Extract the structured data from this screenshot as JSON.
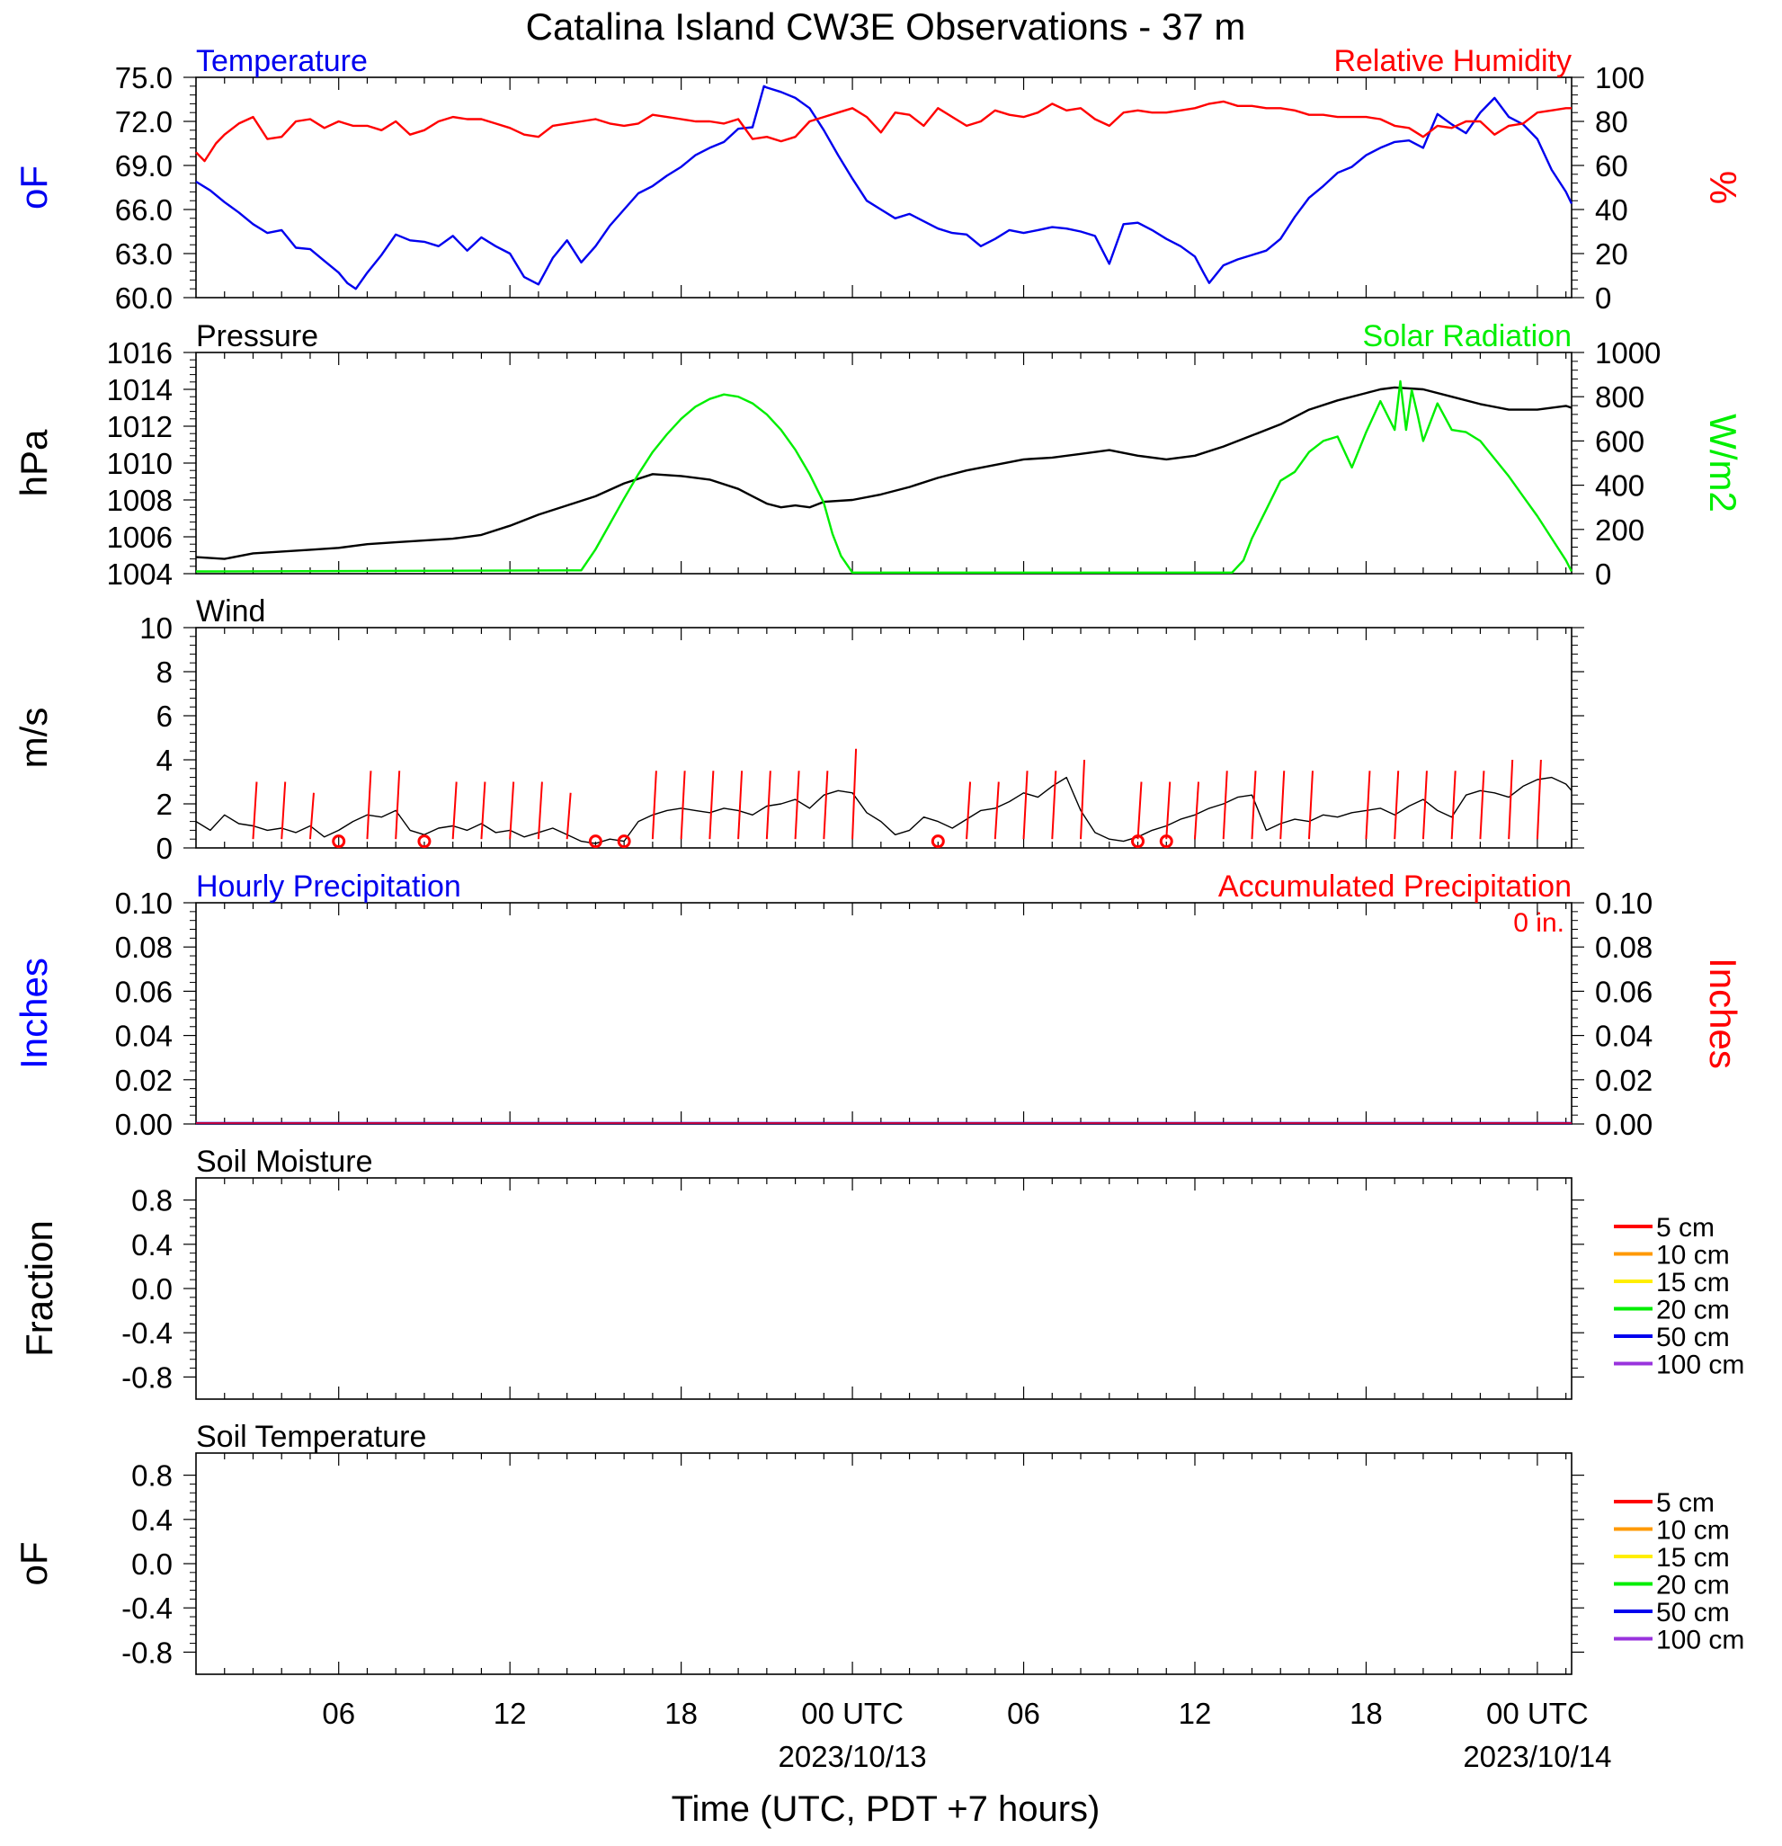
{
  "title": "Catalina Island CW3E Observations - 37 m",
  "xlabel": "Time (UTC, PDT +7 hours)",
  "x_ticks": [
    {
      "hour": 6,
      "label": "06",
      "sub": ""
    },
    {
      "hour": 12,
      "label": "12",
      "sub": ""
    },
    {
      "hour": 18,
      "label": "18",
      "sub": ""
    },
    {
      "hour": 24,
      "label": "00 UTC",
      "sub": "2023/10/13"
    },
    {
      "hour": 30,
      "label": "06",
      "sub": ""
    },
    {
      "hour": 36,
      "label": "12",
      "sub": ""
    },
    {
      "hour": 42,
      "label": "18",
      "sub": ""
    },
    {
      "hour": 48,
      "label": "00 UTC",
      "sub": "2023/10/14"
    }
  ],
  "x_range_hours": [
    1,
    49.2
  ],
  "colors": {
    "temperature": "#0000ee",
    "humidity": "#ff0000",
    "pressure": "#000000",
    "solar": "#00ee00",
    "wind_speed": "#000000",
    "wind_barb": "#ff0000",
    "precip_left": "#0000ff",
    "precip_right": "#ff0000"
  },
  "chart_data": [
    {
      "type": "line",
      "name": "temperature-humidity",
      "left_title": "Temperature",
      "right_title": "Relative Humidity",
      "left_ylabel": "oF",
      "right_ylabel": "%",
      "left_ylim": [
        60,
        75
      ],
      "right_ylim": [
        0,
        100
      ],
      "left_ticks": [
        "60.0",
        "63.0",
        "66.0",
        "69.0",
        "72.0",
        "75.0"
      ],
      "right_ticks": [
        "0",
        "20",
        "40",
        "60",
        "80",
        "100"
      ],
      "series": [
        {
          "name": "Temperature",
          "axis": "left",
          "x": [
            1,
            1.5,
            2,
            2.5,
            3,
            3.5,
            4,
            4.5,
            5,
            5.5,
            6,
            6.3,
            6.6,
            7,
            7.5,
            8,
            8.5,
            9,
            9.5,
            10,
            10.5,
            11,
            11.5,
            12,
            12.5,
            13,
            13.5,
            14,
            14.5,
            15,
            15.5,
            16,
            16.5,
            17,
            17.5,
            18,
            18.5,
            19,
            19.5,
            20,
            20.5,
            20.9,
            21,
            21.5,
            22,
            22.5,
            23,
            23.5,
            24,
            24.5,
            25,
            25.5,
            26,
            26.5,
            27,
            27.5,
            28,
            28.5,
            29,
            29.5,
            30,
            30.5,
            31,
            31.5,
            32,
            32.5,
            33,
            33.5,
            34,
            34.5,
            35,
            35.5,
            36,
            36.3,
            36.5,
            37,
            37.5,
            38,
            38.5,
            39,
            39.5,
            40,
            40.5,
            41,
            41.5,
            42,
            42.5,
            43,
            43.5,
            44,
            44.5,
            45,
            45.5,
            46,
            46.5,
            47,
            47.5,
            48,
            48.5,
            49,
            49.2
          ],
          "values": [
            67.9,
            67.3,
            66.5,
            65.8,
            65.0,
            64.4,
            64.6,
            63.4,
            63.3,
            62.5,
            61.7,
            61.0,
            60.6,
            61.7,
            62.9,
            64.3,
            63.9,
            63.8,
            63.5,
            64.2,
            63.2,
            64.1,
            63.5,
            63.0,
            61.4,
            60.9,
            62.7,
            63.9,
            62.4,
            63.5,
            64.9,
            66.0,
            67.1,
            67.6,
            68.3,
            68.9,
            69.7,
            70.2,
            70.6,
            71.5,
            71.6,
            74.4,
            74.3,
            74.0,
            73.6,
            72.9,
            71.4,
            69.7,
            68.1,
            66.6,
            66.0,
            65.4,
            65.7,
            65.2,
            64.7,
            64.4,
            64.3,
            63.5,
            64.0,
            64.6,
            64.4,
            64.6,
            64.8,
            64.7,
            64.5,
            64.2,
            62.3,
            65.0,
            65.1,
            64.6,
            64.0,
            63.5,
            62.8,
            61.7,
            61.0,
            62.2,
            62.6,
            62.9,
            63.2,
            64.0,
            65.5,
            66.8,
            67.6,
            68.5,
            68.9,
            69.7,
            70.2,
            70.6,
            70.7,
            70.2,
            72.5,
            71.8,
            71.2,
            72.6,
            73.6,
            72.3,
            71.8,
            70.8,
            68.7,
            67.2,
            66.4
          ]
        },
        {
          "name": "Relative Humidity",
          "axis": "right",
          "x": [
            1,
            1.3,
            1.7,
            2,
            2.5,
            3,
            3.5,
            4,
            4.5,
            5,
            5.5,
            6,
            6.5,
            7,
            7.5,
            8,
            8.5,
            9,
            9.5,
            10,
            10.5,
            11,
            11.5,
            12,
            12.5,
            13,
            13.5,
            14,
            14.5,
            15,
            15.5,
            16,
            16.5,
            17,
            17.5,
            18,
            18.5,
            19,
            19.5,
            20,
            20.5,
            21,
            21.5,
            22,
            22.5,
            23,
            23.5,
            24,
            24.5,
            25,
            25.5,
            26,
            26.5,
            27,
            27.5,
            28,
            28.5,
            29,
            29.5,
            30,
            30.5,
            31,
            31.5,
            32,
            32.5,
            33,
            33.5,
            34,
            34.5,
            35,
            35.5,
            36,
            36.5,
            37,
            37.5,
            38,
            38.5,
            39,
            39.5,
            40,
            40.5,
            41,
            41.5,
            42,
            42.5,
            43,
            43.5,
            44,
            44.5,
            45,
            45.5,
            46,
            46.5,
            47,
            47.5,
            48,
            48.5,
            49,
            49.2
          ],
          "values": [
            66,
            62,
            70,
            74,
            79,
            82,
            72,
            73,
            80,
            81,
            77,
            80,
            78,
            78,
            76,
            80,
            74,
            76,
            80,
            82,
            81,
            81,
            79,
            77,
            74,
            73,
            78,
            79,
            80,
            81,
            79,
            78,
            79,
            83,
            82,
            81,
            80,
            80,
            79,
            81,
            72,
            73,
            71,
            73,
            80,
            82,
            84,
            86,
            82,
            75,
            84,
            83,
            78,
            86,
            82,
            78,
            80,
            85,
            83,
            82,
            84,
            88,
            85,
            86,
            81,
            78,
            84,
            85,
            84,
            84,
            85,
            86,
            88,
            89,
            87,
            87,
            86,
            86,
            85,
            83,
            83,
            82,
            82,
            82,
            81,
            78,
            77,
            73,
            78,
            77,
            80,
            80,
            74,
            78,
            79,
            84,
            85,
            86,
            86
          ]
        }
      ]
    },
    {
      "type": "line",
      "name": "pressure-solar",
      "left_title": "Pressure",
      "right_title": "Solar Radiation",
      "left_ylabel": "hPa",
      "right_ylabel": "W/m2",
      "left_ylim": [
        1004,
        1016
      ],
      "right_ylim": [
        0,
        1000
      ],
      "left_ticks": [
        "1004",
        "1006",
        "1008",
        "1010",
        "1012",
        "1014",
        "1016"
      ],
      "right_ticks": [
        "0",
        "200",
        "400",
        "600",
        "800",
        "1000"
      ],
      "series": [
        {
          "name": "Pressure",
          "axis": "left",
          "x": [
            1,
            2,
            3,
            4,
            5,
            6,
            7,
            8,
            9,
            10,
            11,
            12,
            13,
            14,
            15,
            16,
            17,
            18,
            19,
            20,
            20.5,
            21,
            21.5,
            22,
            22.5,
            23,
            24,
            25,
            26,
            27,
            28,
            29,
            30,
            31,
            32,
            33,
            34,
            35,
            36,
            37,
            38,
            39,
            40,
            41,
            42,
            42.5,
            43,
            44,
            45,
            46,
            47,
            48,
            49,
            49.2
          ],
          "values": [
            1004.9,
            1004.8,
            1005.1,
            1005.2,
            1005.3,
            1005.4,
            1005.6,
            1005.7,
            1005.8,
            1005.9,
            1006.1,
            1006.6,
            1007.2,
            1007.7,
            1008.2,
            1008.9,
            1009.4,
            1009.3,
            1009.1,
            1008.6,
            1008.2,
            1007.8,
            1007.6,
            1007.7,
            1007.6,
            1007.9,
            1008.0,
            1008.3,
            1008.7,
            1009.2,
            1009.6,
            1009.9,
            1010.2,
            1010.3,
            1010.5,
            1010.7,
            1010.4,
            1010.2,
            1010.4,
            1010.9,
            1011.5,
            1012.1,
            1012.9,
            1013.4,
            1013.8,
            1014.0,
            1014.1,
            1014.0,
            1013.6,
            1013.2,
            1012.9,
            1012.9,
            1013.1,
            1013.0
          ]
        },
        {
          "name": "Solar Radiation",
          "axis": "right",
          "x": [
            1,
            14.5,
            15,
            15.5,
            16,
            16.5,
            17,
            17.5,
            18,
            18.5,
            19,
            19.5,
            20,
            20.5,
            21,
            21.5,
            22,
            22.5,
            23,
            23.3,
            23.6,
            24,
            37.3,
            37.7,
            38,
            38.5,
            39,
            39.5,
            40,
            40.5,
            41,
            41.5,
            42,
            42.5,
            43,
            43.2,
            43.4,
            43.6,
            43.8,
            44,
            44.5,
            45,
            45.5,
            46,
            46.5,
            47,
            47.5,
            48,
            48.5,
            49,
            49.2
          ],
          "values": [
            10,
            15,
            110,
            225,
            340,
            450,
            550,
            630,
            700,
            755,
            790,
            810,
            800,
            770,
            720,
            650,
            560,
            450,
            320,
            180,
            80,
            5,
            5,
            60,
            160,
            290,
            420,
            460,
            550,
            600,
            620,
            480,
            640,
            780,
            650,
            870,
            650,
            830,
            720,
            600,
            770,
            650,
            640,
            600,
            520,
            440,
            350,
            260,
            160,
            60,
            10
          ]
        }
      ]
    },
    {
      "type": "line",
      "name": "wind",
      "left_title": "Wind",
      "left_ylabel": "m/s",
      "left_ylim": [
        0,
        10
      ],
      "left_ticks": [
        "0",
        "2",
        "4",
        "6",
        "8",
        "10"
      ],
      "series": [
        {
          "name": "Wind speed",
          "axis": "left",
          "x": [
            1,
            1.5,
            2,
            2.5,
            3,
            3.5,
            4,
            4.5,
            5,
            5.5,
            6,
            6.5,
            7,
            7.5,
            8,
            8.5,
            9,
            9.5,
            10,
            10.5,
            11,
            11.5,
            12,
            12.5,
            13,
            13.5,
            14,
            14.5,
            15,
            15.5,
            16,
            16.5,
            17,
            17.5,
            18,
            18.5,
            19,
            19.5,
            20,
            20.5,
            21,
            21.5,
            22,
            22.5,
            23,
            23.5,
            24,
            24.5,
            25,
            25.5,
            26,
            26.5,
            27,
            27.5,
            28,
            28.5,
            29,
            29.5,
            30,
            30.5,
            31,
            31.5,
            32,
            32.5,
            33,
            33.5,
            34,
            34.5,
            35,
            35.5,
            36,
            36.5,
            37,
            37.5,
            38,
            38.5,
            39,
            39.5,
            40,
            40.5,
            41,
            41.5,
            42,
            42.5,
            43,
            43.5,
            44,
            44.5,
            45,
            45.5,
            46,
            46.5,
            47,
            47.5,
            48,
            48.5,
            49,
            49.2
          ],
          "values": [
            1.2,
            0.8,
            1.5,
            1.1,
            1.0,
            0.8,
            0.9,
            0.7,
            1.0,
            0.5,
            0.8,
            1.2,
            1.5,
            1.4,
            1.7,
            0.8,
            0.6,
            0.9,
            1.0,
            0.8,
            1.1,
            0.7,
            0.8,
            0.5,
            0.7,
            0.9,
            0.6,
            0.3,
            0.2,
            0.4,
            0.3,
            1.2,
            1.5,
            1.7,
            1.8,
            1.7,
            1.6,
            1.8,
            1.7,
            1.5,
            1.9,
            2.0,
            2.2,
            1.8,
            2.4,
            2.6,
            2.5,
            1.6,
            1.2,
            0.6,
            0.8,
            1.4,
            1.2,
            0.9,
            1.3,
            1.7,
            1.8,
            2.1,
            2.5,
            2.3,
            2.8,
            3.2,
            1.7,
            0.7,
            0.4,
            0.3,
            0.5,
            0.8,
            1.0,
            1.3,
            1.5,
            1.8,
            2.0,
            2.3,
            2.4,
            0.8,
            1.1,
            1.3,
            1.2,
            1.5,
            1.4,
            1.6,
            1.7,
            1.8,
            1.5,
            1.9,
            2.2,
            1.7,
            1.4,
            2.4,
            2.6,
            2.5,
            2.3,
            2.8,
            3.1,
            3.2,
            2.9,
            2.6
          ]
        }
      ],
      "barb_hours": [
        3,
        4,
        5,
        7,
        8,
        10,
        11,
        12,
        13,
        14,
        17,
        18,
        19,
        20,
        21,
        22,
        23,
        24,
        28,
        29,
        30,
        31,
        32,
        34,
        35,
        36,
        37,
        38,
        39,
        40,
        42,
        43,
        44,
        45,
        46,
        47,
        48
      ],
      "barb_speeds": [
        3,
        3,
        2.5,
        3.5,
        3.5,
        3,
        3,
        3,
        3,
        2.5,
        3.5,
        3.5,
        3.5,
        3.5,
        3.5,
        3.5,
        3.5,
        4.5,
        3,
        3,
        3.5,
        3.5,
        4,
        3,
        3,
        3,
        3.5,
        3.5,
        3.5,
        3.5,
        3.5,
        3.5,
        3.5,
        3.5,
        3.5,
        4,
        4
      ],
      "calm_hours": [
        6,
        9,
        15,
        16,
        27,
        34,
        35
      ]
    },
    {
      "type": "bar",
      "name": "precipitation",
      "left_title": "Hourly Precipitation",
      "right_title": "Accumulated Precipitation",
      "annotation": "0 in.",
      "left_ylabel": "Inches",
      "right_ylabel": "Inches",
      "left_ylim": [
        0,
        0.1
      ],
      "right_ylim": [
        0,
        0.1
      ],
      "left_ticks": [
        "0.00",
        "0.02",
        "0.04",
        "0.06",
        "0.08",
        "0.10"
      ],
      "right_ticks": [
        "0.00",
        "0.02",
        "0.04",
        "0.06",
        "0.08",
        "0.10"
      ],
      "values": [
        0
      ]
    },
    {
      "type": "line",
      "name": "soil-moisture",
      "left_title": "Soil Moisture",
      "left_ylabel": "Fraction",
      "left_ylim": [
        -1,
        1
      ],
      "left_ticks": [
        "-0.8",
        "-0.4",
        "0.0",
        "0.4",
        "0.8"
      ],
      "legend": [
        "5 cm",
        "10 cm",
        "15 cm",
        "20 cm",
        "50 cm",
        "100 cm"
      ],
      "legend_colors": [
        "#ff0000",
        "#ff9900",
        "#ffee00",
        "#00ee00",
        "#0000ee",
        "#9933dd"
      ],
      "series": []
    },
    {
      "type": "line",
      "name": "soil-temperature",
      "left_title": "Soil Temperature",
      "left_ylabel": "oF",
      "left_ylim": [
        -1,
        1
      ],
      "left_ticks": [
        "-0.8",
        "-0.4",
        "0.0",
        "0.4",
        "0.8"
      ],
      "legend": [
        "5 cm",
        "10 cm",
        "15 cm",
        "20 cm",
        "50 cm",
        "100 cm"
      ],
      "legend_colors": [
        "#ff0000",
        "#ff9900",
        "#ffee00",
        "#00ee00",
        "#0000ee",
        "#9933dd"
      ],
      "series": []
    }
  ]
}
